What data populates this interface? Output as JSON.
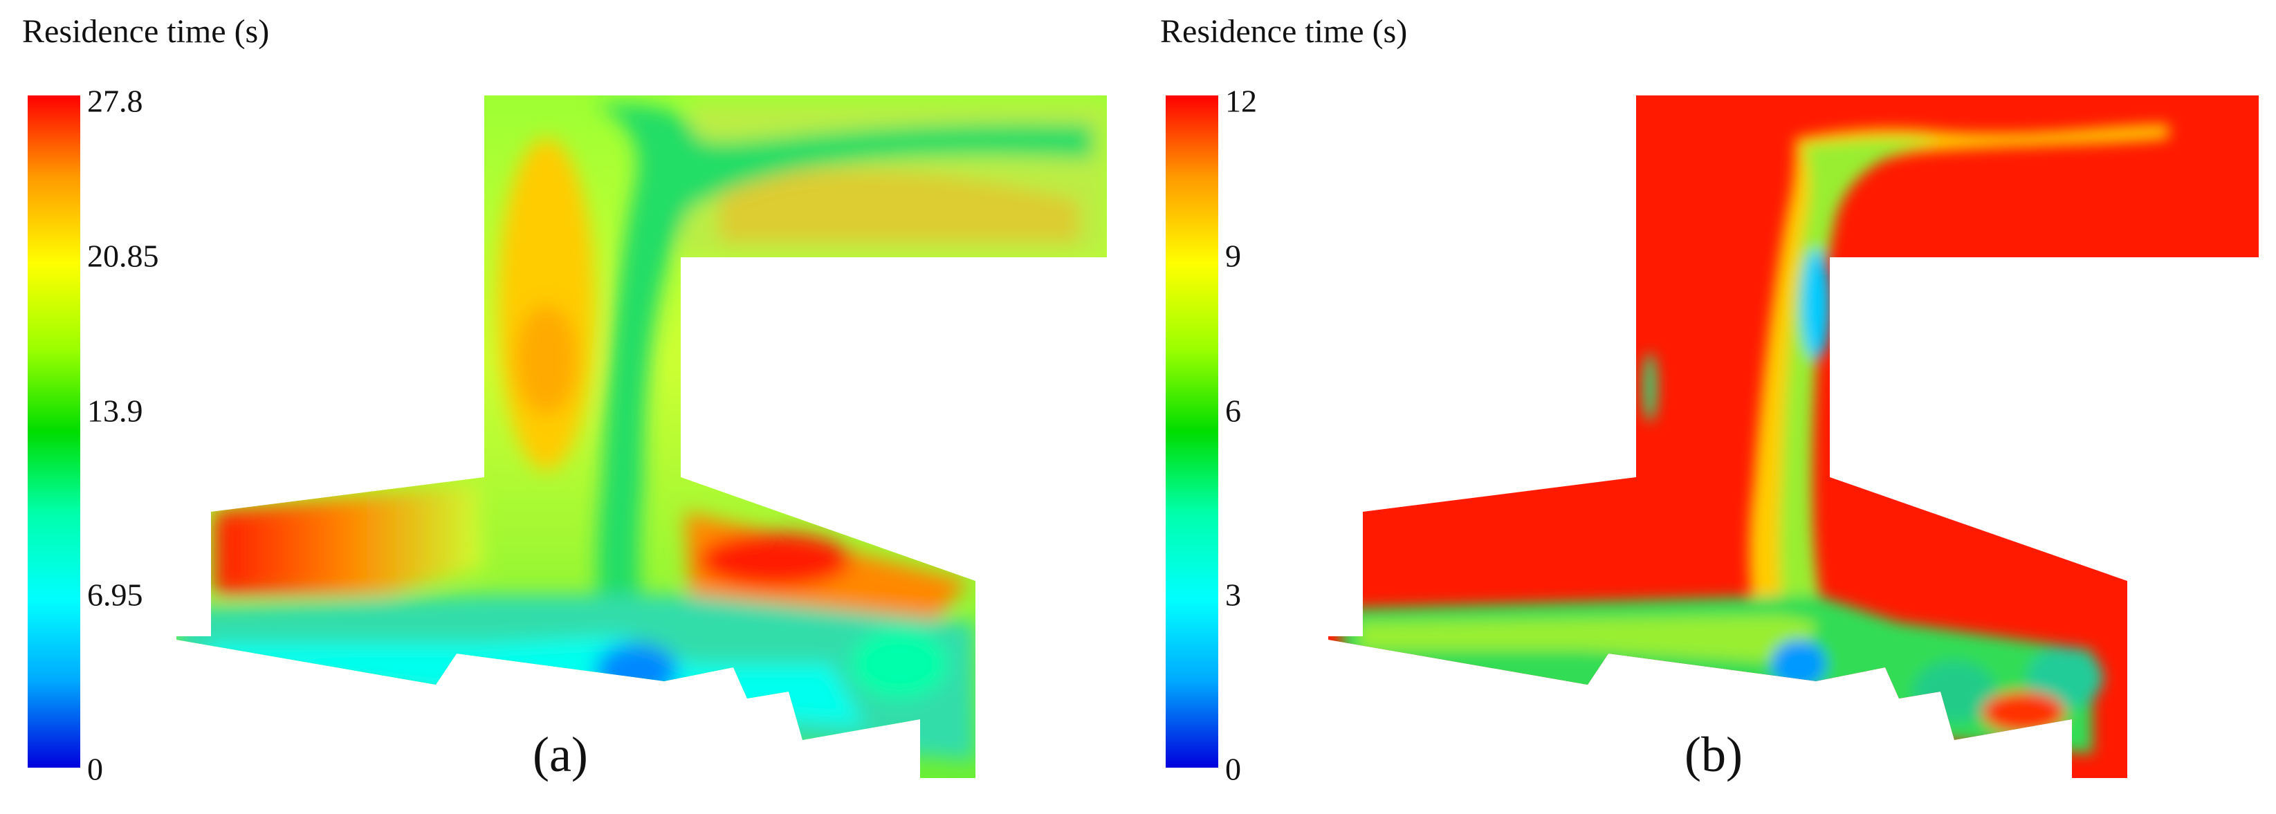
{
  "panels": [
    {
      "colorbar_title": "Residence time (s)",
      "ticks": [
        "27.8",
        "20.85",
        "13.9",
        "6.95",
        "0"
      ],
      "label": "(a)",
      "colors": {
        "high": "#ff0000",
        "mid": "#00dd00",
        "low": "#0000dd"
      }
    },
    {
      "colorbar_title": "Residence time (s)",
      "ticks": [
        "12",
        "9",
        "6",
        "3",
        "0"
      ],
      "label": "(b)",
      "colors": {
        "high": "#ff0000",
        "mid": "#00dd00",
        "low": "#0000dd"
      }
    }
  ]
}
